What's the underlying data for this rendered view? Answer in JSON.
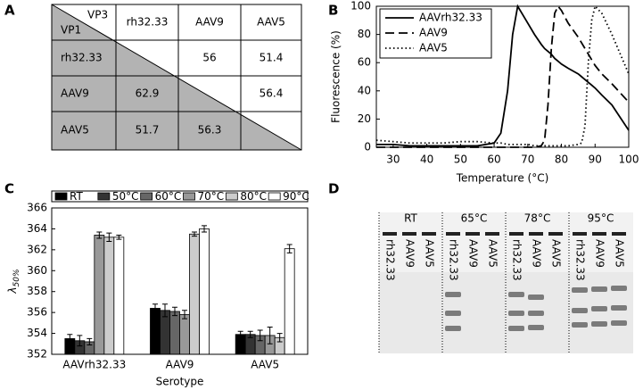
{
  "panel_labels": [
    "A",
    "B",
    "C",
    "D"
  ],
  "table": {
    "corner_top": "VP3",
    "corner_bottom": "VP1",
    "columns": [
      "rh32.33",
      "AAV9",
      "AAV5"
    ],
    "rows": [
      {
        "label": "rh32.33",
        "values": [
          null,
          56,
          51.4
        ]
      },
      {
        "label": "AAV9",
        "values": [
          62.9,
          null,
          56.4
        ]
      },
      {
        "label": "AAV5",
        "values": [
          51.7,
          56.3,
          null
        ]
      }
    ]
  },
  "chart_data": [
    {
      "type": "line",
      "xlabel": "Temperature (°C)",
      "ylabel": "Fluorescence (%)",
      "xlim": [
        25,
        100
      ],
      "ylim": [
        0,
        100
      ],
      "xticks": [
        30,
        40,
        50,
        60,
        70,
        80,
        90,
        100
      ],
      "yticks": [
        0,
        20,
        40,
        60,
        80,
        100
      ],
      "legend": "upper left",
      "x": [
        25,
        30,
        35,
        40,
        45,
        50,
        55,
        60,
        62,
        64,
        65.5,
        67,
        68,
        70,
        72,
        74,
        75,
        76,
        77,
        78,
        79,
        80,
        82,
        85,
        86,
        87,
        88,
        89,
        90,
        92,
        95,
        100
      ],
      "series": [
        {
          "name": "AAVrh32.33",
          "color": "#000000",
          "dash": "solid",
          "values": [
            2,
            2,
            1,
            1,
            1,
            1,
            1,
            3,
            10,
            40,
            80,
            100,
            96,
            88,
            80,
            73,
            70,
            68,
            66,
            63,
            61,
            59,
            56,
            52,
            50,
            48,
            46,
            44,
            42,
            37,
            30,
            12
          ]
        },
        {
          "name": "AAV9",
          "color": "#000000",
          "dash": "dashed",
          "values": [
            0,
            0,
            0,
            0,
            0,
            0,
            0,
            0,
            0,
            0,
            0,
            0,
            0,
            0,
            0,
            1,
            5,
            30,
            70,
            95,
            100,
            97,
            88,
            78,
            74,
            70,
            66,
            62,
            58,
            52,
            45,
            32
          ]
        },
        {
          "name": "AAV5",
          "color": "#000000",
          "dash": "dotted",
          "values": [
            5,
            4,
            3,
            3,
            3,
            4,
            4,
            3,
            3,
            2,
            2,
            2,
            2,
            2,
            1,
            1,
            1,
            1,
            1,
            1,
            1,
            1,
            1,
            2,
            3,
            15,
            60,
            90,
            100,
            95,
            80,
            52
          ]
        }
      ]
    },
    {
      "type": "bar",
      "xlabel": "Serotype",
      "ylabel": "λ",
      "ylabel_sub": "50%",
      "ylim": [
        352,
        366
      ],
      "yticks": [
        352,
        354,
        356,
        358,
        360,
        362,
        364,
        366
      ],
      "legend": "top",
      "categories": [
        "AAVrh32.33",
        "AAV9",
        "AAV5"
      ],
      "series": [
        {
          "name": "RT",
          "color": "#000000",
          "values": [
            353.5,
            356.4,
            353.9
          ],
          "errors": [
            0.4,
            0.4,
            0.3
          ]
        },
        {
          "name": "50°C",
          "color": "#333333",
          "values": [
            353.3,
            356.2,
            353.9
          ],
          "errors": [
            0.5,
            0.6,
            0.3
          ]
        },
        {
          "name": "60°C",
          "color": "#666666",
          "values": [
            353.2,
            356.1,
            353.8
          ],
          "errors": [
            0.3,
            0.4,
            0.5
          ]
        },
        {
          "name": "70°C",
          "color": "#999999",
          "values": [
            363.4,
            355.8,
            353.8
          ],
          "errors": [
            0.3,
            0.4,
            0.8
          ]
        },
        {
          "name": "80°C",
          "color": "#cccccc",
          "values": [
            363.2,
            363.5,
            353.6
          ],
          "errors": [
            0.4,
            0.2,
            0.4
          ]
        },
        {
          "name": "90°C",
          "color": "#ffffff",
          "values": [
            363.2,
            364.0,
            362.1
          ],
          "errors": [
            0.2,
            0.3,
            0.4
          ]
        }
      ]
    }
  ],
  "gel": {
    "conditions": [
      "RT",
      "65°C",
      "78°C",
      "95°C"
    ],
    "lanes": [
      "rh32.33",
      "AAV9",
      "AAV5"
    ]
  }
}
